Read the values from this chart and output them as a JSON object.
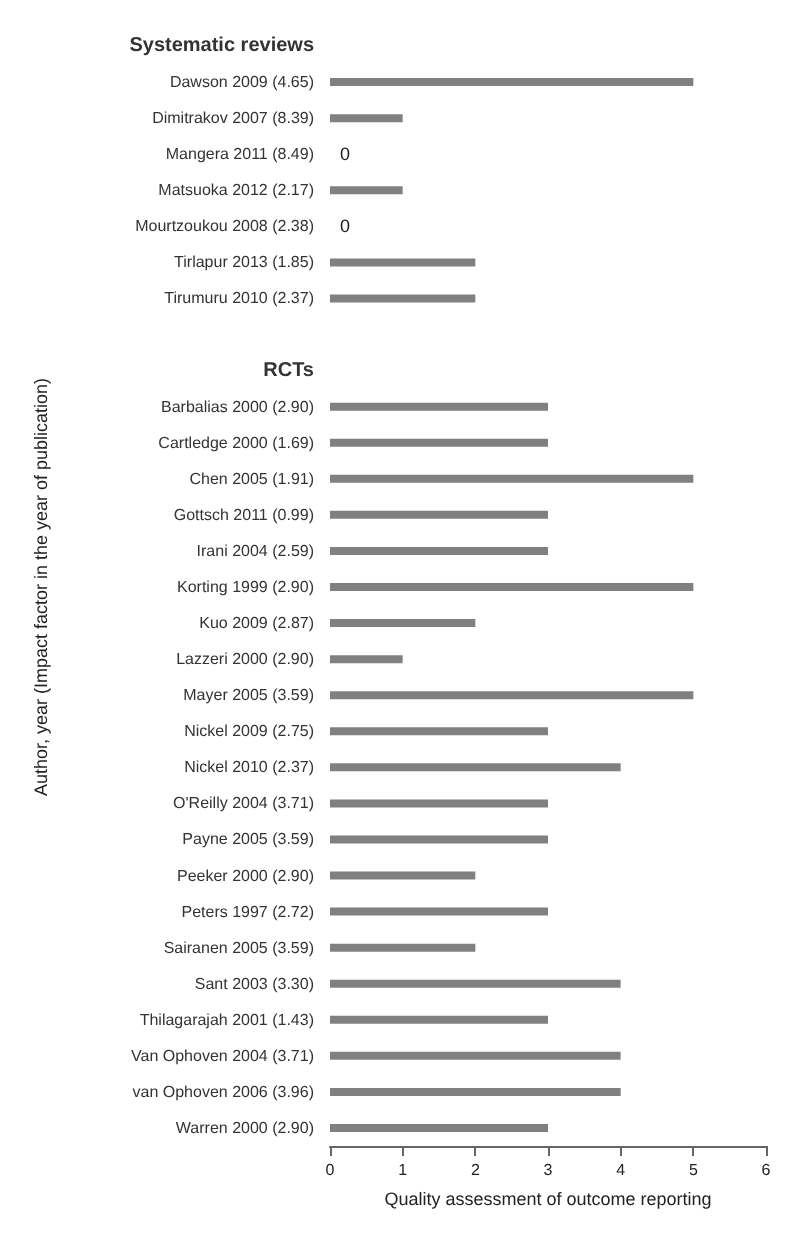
{
  "chart_data": {
    "type": "bar",
    "orientation": "horizontal",
    "xlabel": "Quality assessment of outcome reporting",
    "ylabel": "Author, year (Impact factor in the year of publication)",
    "categories": [
      "Systematic reviews",
      "Dawson 2009 (4.65)",
      "Dimitrakov 2007 (8.39)",
      "Mangera 2011 (8.49)",
      "Matsuoka 2012 (2.17)",
      "Mourtzoukou 2008 (2.38)",
      "Tirlapur 2013 (1.85)",
      "Tirumuru 2010 (2.37)",
      null,
      "RCTs",
      "Barbalias 2000 (2.90)",
      "Cartledge 2000 (1.69)",
      "Chen 2005 (1.91)",
      "Gottsch 2011 (0.99)",
      "Irani 2004 (2.59)",
      "Korting 1999 (2.90)",
      "Kuo 2009 (2.87)",
      "Lazzeri 2000 (2.90)",
      "Mayer 2005 (3.59)",
      "Nickel 2009 (2.75)",
      "Nickel 2010 (2.37)",
      "O'Reilly 2004 (3.71)",
      "Payne 2005 (3.59)",
      "Peeker 2000 (2.90)",
      "Peters 1997 (2.72)",
      "Sairanen 2005 (3.59)",
      "Sant 2003 (3.30)",
      "Thilagarajah 2001 (1.43)",
      "Van Ophoven 2004 (3.71)",
      "van Ophoven 2006 (3.96)",
      "Warren 2000 (2.90)"
    ],
    "values": [
      null,
      5,
      1,
      0,
      1,
      0,
      2,
      2,
      null,
      null,
      3,
      3,
      5,
      3,
      3,
      5,
      2,
      1,
      5,
      3,
      4,
      3,
      3,
      2,
      3,
      2,
      4,
      3,
      4,
      4,
      3
    ],
    "value_labels": [
      null,
      null,
      null,
      "0",
      null,
      "0",
      null,
      null,
      null,
      null,
      null,
      null,
      null,
      null,
      null,
      null,
      null,
      null,
      null,
      null,
      null,
      null,
      null,
      null,
      null,
      null,
      null,
      null,
      null,
      null,
      null
    ],
    "color": "#808080",
    "xlim": [
      0,
      6
    ],
    "xticks": [
      0,
      1,
      2,
      3,
      4,
      5,
      6
    ],
    "grid": false
  }
}
